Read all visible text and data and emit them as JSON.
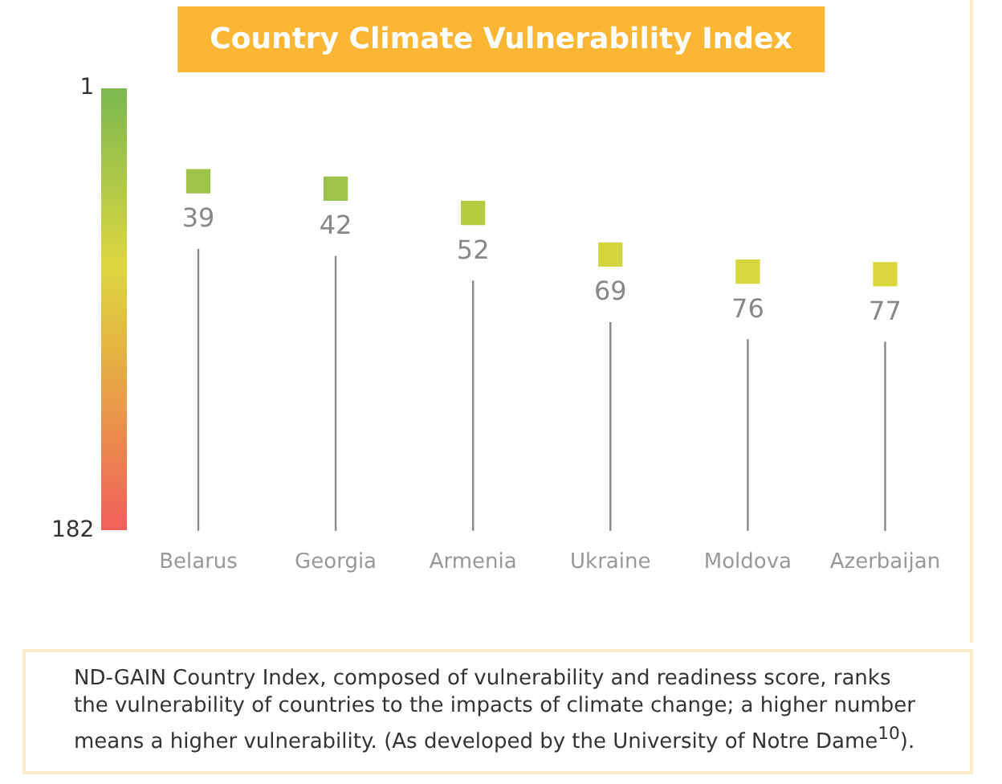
{
  "chart_data": {
    "type": "lollipop",
    "title": "Country Climate Vulnerability Index",
    "categories": [
      "Belarus",
      "Georgia",
      "Armenia",
      "Ukraine",
      "Moldova",
      "Azerbaijan"
    ],
    "values": [
      39,
      42,
      52,
      69,
      76,
      77
    ],
    "colors": [
      "#9dc34a",
      "#9dc34a",
      "#b3cc40",
      "#d4d43e",
      "#d8d63e",
      "#dcd63e"
    ],
    "ylim": [
      182,
      1
    ],
    "yticks": [
      1,
      182
    ],
    "grid": false,
    "legend": false,
    "data_labels": true,
    "marker": "square",
    "annotations": [
      "ND-GAIN Country Index, composed of vulnerability and readiness score, ranks the vulnerability of countries to the impacts of climate change; a higher number means a higher vulnerability. (As developed by the University of Notre Dame$^{10}$)."
    ]
  }
}
